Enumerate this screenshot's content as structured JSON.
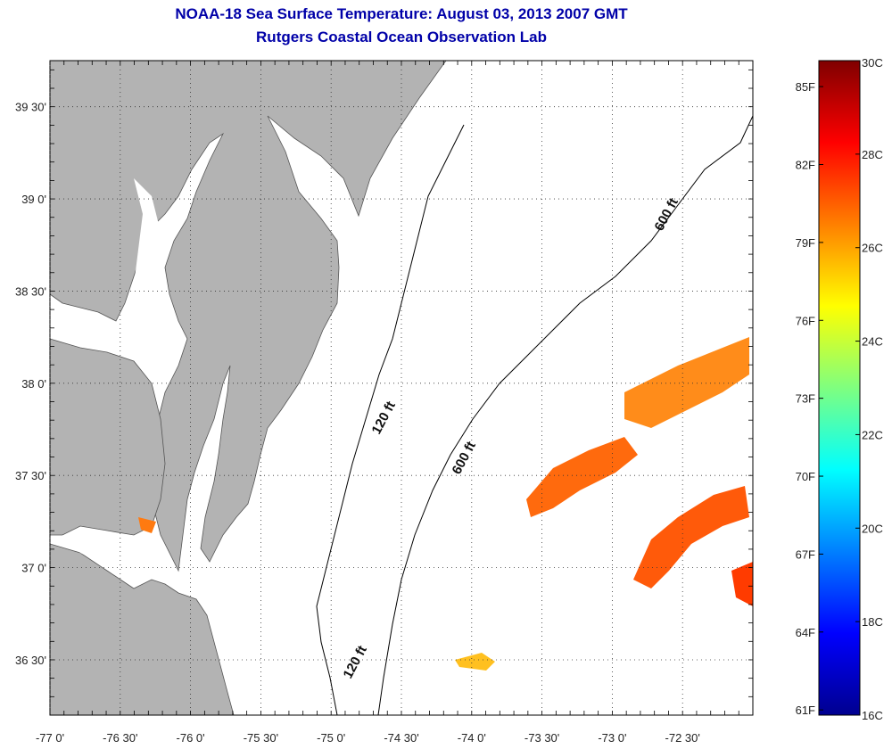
{
  "title": {
    "line1": "NOAA-18 Sea Surface Temperature:  August 03, 2013 2007 GMT",
    "line2": "Rutgers Coastal Ocean Observation Lab"
  },
  "map": {
    "lon_range": [
      -77.0,
      -72.0
    ],
    "lat_range": [
      36.2,
      39.75
    ],
    "lon_ticks": [
      "-77 0'",
      "-76 30'",
      "-76 0'",
      "-75 30'",
      "-75 0'",
      "-74 30'",
      "-74 0'",
      "-73 30'",
      "-73 0'",
      "-72 30'"
    ],
    "lat_ticks": [
      "39 30'",
      "39 0'",
      "38 30'",
      "38 0'",
      "37 30'",
      "37 0'",
      "36 30'"
    ],
    "grid": "dotted",
    "contour_labels": [
      "600 ft",
      "120 ft",
      "600 ft",
      "120 ft"
    ]
  },
  "colorbar": {
    "celsius_labels": [
      "30C",
      "28C",
      "26C",
      "24C",
      "22C",
      "20C",
      "18C",
      "16C"
    ],
    "fahrenheit_labels": [
      "85F",
      "82F",
      "79F",
      "76F",
      "73F",
      "70F",
      "67F",
      "64F",
      "61F"
    ],
    "range_c": [
      16,
      30
    ],
    "colormap": "jet"
  },
  "colors": {
    "land": "#b3b3b3",
    "title": "#0000a8",
    "water": "#ffffff",
    "contour": "#000000"
  }
}
